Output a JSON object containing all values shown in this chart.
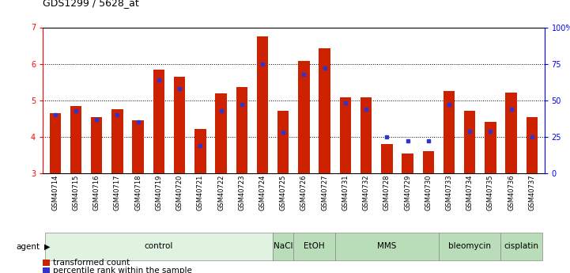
{
  "title": "GDS1299 / 5628_at",
  "samples": [
    "GSM40714",
    "GSM40715",
    "GSM40716",
    "GSM40717",
    "GSM40718",
    "GSM40719",
    "GSM40720",
    "GSM40721",
    "GSM40722",
    "GSM40723",
    "GSM40724",
    "GSM40725",
    "GSM40726",
    "GSM40727",
    "GSM40731",
    "GSM40732",
    "GSM40728",
    "GSM40729",
    "GSM40730",
    "GSM40733",
    "GSM40734",
    "GSM40735",
    "GSM40736",
    "GSM40737"
  ],
  "red_values": [
    4.65,
    4.85,
    4.55,
    4.75,
    4.45,
    5.85,
    5.65,
    4.22,
    5.18,
    5.36,
    6.75,
    4.72,
    6.08,
    6.42,
    5.08,
    5.08,
    3.8,
    3.55,
    3.6,
    5.25,
    4.72,
    4.42,
    5.22,
    4.55
  ],
  "blue_percentile": [
    40,
    43,
    37,
    40,
    35,
    64,
    58,
    19,
    43,
    47,
    75,
    28,
    68,
    72,
    48,
    44,
    25,
    22,
    22,
    47,
    29,
    29,
    44,
    25
  ],
  "ylim_left": [
    3,
    7
  ],
  "ylim_right": [
    0,
    100
  ],
  "yticks_left": [
    3,
    4,
    5,
    6,
    7
  ],
  "yticks_right": [
    0,
    25,
    50,
    75,
    100
  ],
  "ytick_labels_right": [
    "0",
    "25",
    "50",
    "75",
    "100%"
  ],
  "groups": [
    {
      "label": "control",
      "indices": [
        0,
        1,
        2,
        3,
        4,
        5,
        6,
        7,
        8,
        9,
        10
      ]
    },
    {
      "label": "NaCl",
      "indices": [
        11
      ]
    },
    {
      "label": "EtOH",
      "indices": [
        12,
        13
      ]
    },
    {
      "label": "MMS",
      "indices": [
        14,
        15,
        16,
        17,
        18
      ]
    },
    {
      "label": "bleomycin",
      "indices": [
        19,
        20,
        21
      ]
    },
    {
      "label": "cisplatin",
      "indices": [
        22,
        23
      ]
    }
  ],
  "bar_color_red": "#cc2200",
  "bar_color_blue": "#3333cc",
  "bar_width": 0.55,
  "background_color": "#ffffff",
  "title_fontsize": 9,
  "tick_fontsize": 6,
  "group_fontsize": 7.5,
  "legend_labels": [
    "transformed count",
    "percentile rank within the sample"
  ],
  "group_bg_light": "#e0f2e0",
  "group_bg_dark": "#b8ddb8"
}
